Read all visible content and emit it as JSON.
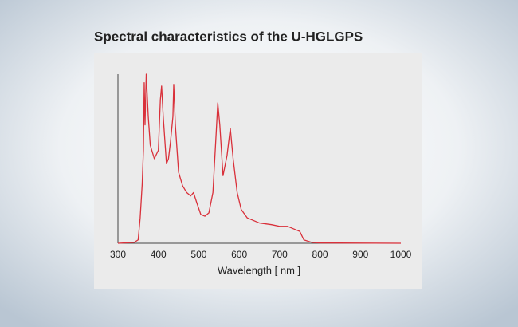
{
  "chart_data": {
    "type": "line",
    "title": "Spectral characteristics of the U-HGLGPS",
    "x_label": "Wavelength [ nm ]",
    "x": [
      300,
      340,
      350,
      355,
      360,
      363,
      365,
      367,
      370,
      375,
      380,
      390,
      400,
      405,
      408,
      412,
      420,
      425,
      430,
      436,
      438,
      442,
      450,
      460,
      470,
      480,
      487,
      495,
      505,
      515,
      525,
      535,
      543,
      547,
      552,
      560,
      570,
      578,
      585,
      595,
      605,
      620,
      650,
      680,
      700,
      720,
      740,
      750,
      760,
      780,
      800,
      1000
    ],
    "series": [
      {
        "color": "#d9303a",
        "values": [
          0,
          0.5,
          2,
          15,
          35,
          55,
          95,
          70,
          100,
          75,
          58,
          50,
          55,
          85,
          93,
          75,
          47,
          50,
          60,
          75,
          94,
          70,
          42,
          34,
          30,
          28,
          30,
          24,
          17,
          16,
          18,
          30,
          65,
          83,
          70,
          40,
          52,
          68,
          50,
          30,
          20,
          15,
          12,
          11,
          10,
          10,
          8,
          7,
          2,
          0.5,
          0.2,
          0
        ]
      }
    ],
    "xlim": [
      300,
      1000
    ],
    "xticks": [
      300,
      400,
      500,
      600,
      700,
      800,
      900,
      1000
    ],
    "ylim": [
      0,
      100
    ]
  }
}
